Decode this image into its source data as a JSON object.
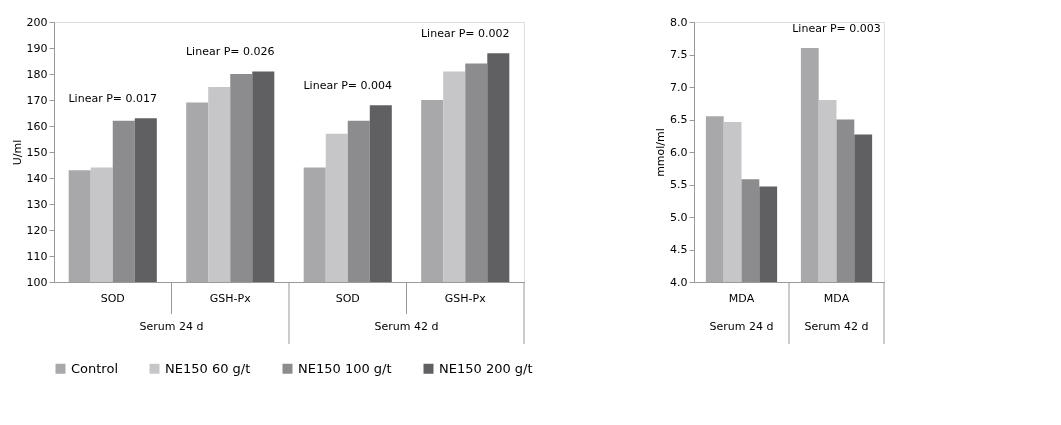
{
  "chart_data": [
    {
      "type": "bar",
      "categories": [
        "SOD",
        "GSH-Px",
        "SOD",
        "GSH-Px"
      ],
      "ylabel": "U/ml",
      "ylim": [
        100,
        200
      ],
      "yticks": [
        100,
        110,
        120,
        130,
        140,
        150,
        160,
        170,
        180,
        190,
        200
      ],
      "grid": false,
      "legend": "bottom",
      "series": [
        {
          "name": "Control",
          "color": "#a8a8aa",
          "values": [
            143,
            169,
            144,
            170
          ]
        },
        {
          "name": "NE150 60 g/t",
          "color": "#c6c6c8",
          "values": [
            144,
            175,
            157,
            181
          ]
        },
        {
          "name": "NE150 100 g/t",
          "color": "#8c8c8e",
          "values": [
            162,
            180,
            162,
            184
          ]
        },
        {
          "name": "NE150 200 g/t",
          "color": "#606062",
          "values": [
            163,
            181,
            168,
            188
          ]
        }
      ],
      "annotations": [
        "Linear P= 0.017",
        "Linear P= 0.026",
        "Linear P= 0.004",
        "Linear P= 0.002",
        "Serum 24 d",
        "Serum 42 d"
      ]
    },
    {
      "type": "bar",
      "categories": [
        "MDA",
        "MDA"
      ],
      "ylabel": "mmol/ml",
      "ylim": [
        4,
        8
      ],
      "yticks": [
        {
          "value": 4,
          "label": "4.0"
        },
        4.5,
        {
          "value": 5,
          "label": "5.0"
        },
        5.5,
        {
          "value": 6,
          "label": "6.0"
        },
        6.5,
        {
          "value": 7,
          "label": "7.0"
        },
        7.5,
        {
          "value": 8,
          "label": "8.0"
        }
      ],
      "grid": false,
      "series": [
        {
          "color": "#a8a8aa",
          "values": [
            6.55,
            7.6
          ]
        },
        {
          "color": "#c6c6c8",
          "values": [
            6.46,
            6.8
          ]
        },
        {
          "color": "#8c8c8e",
          "values": [
            5.58,
            6.5
          ]
        },
        {
          "color": "#606062",
          "values": [
            5.47,
            6.27
          ]
        }
      ],
      "annotations": [
        "Linear P= 0.003",
        "Serum 24 d",
        "Serum 42 d"
      ]
    }
  ]
}
